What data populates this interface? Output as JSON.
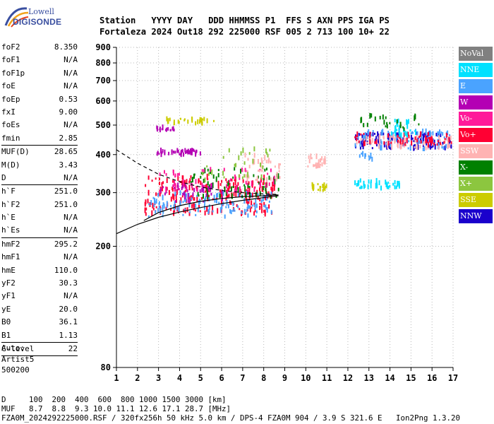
{
  "logo": {
    "line1": "Lowell",
    "line2": "DIGISONDE"
  },
  "header": {
    "labels": "Station   YYYY DAY   DDD HHMMSS P1  FFS S AXN PPS IGA PS",
    "values": "Fortaleza 2024 Out18 292 225000 RSF 005 2 713 100 10+ 22"
  },
  "params": {
    "group1": [
      {
        "name": "foF2",
        "value": "8.350"
      },
      {
        "name": "foF1",
        "value": "N/A"
      },
      {
        "name": "foF1p",
        "value": "N/A"
      },
      {
        "name": "foE",
        "value": "N/A"
      },
      {
        "name": "foEp",
        "value": "0.53"
      },
      {
        "name": "fxI",
        "value": "9.00"
      },
      {
        "name": "foEs",
        "value": "N/A"
      },
      {
        "name": "fmin",
        "value": "2.85"
      }
    ],
    "group2": [
      {
        "name": "MUF(D)",
        "value": "28.65"
      },
      {
        "name": "M(D)",
        "value": "3.43"
      },
      {
        "name": "D",
        "value": "N/A"
      }
    ],
    "group3": [
      {
        "name": "h`F",
        "value": "251.0"
      },
      {
        "name": "h`F2",
        "value": "251.0"
      },
      {
        "name": "h`E",
        "value": "N/A"
      },
      {
        "name": "h`Es",
        "value": "N/A"
      }
    ],
    "group4": [
      {
        "name": "hmF2",
        "value": "295.2"
      },
      {
        "name": "hmF1",
        "value": "N/A"
      },
      {
        "name": "hmE",
        "value": "110.0"
      },
      {
        "name": "yF2",
        "value": "30.3"
      },
      {
        "name": "yF1",
        "value": "N/A"
      },
      {
        "name": "yE",
        "value": "20.0"
      },
      {
        "name": "B0",
        "value": "36.1"
      },
      {
        "name": "B1",
        "value": "1.13"
      }
    ],
    "group5": [
      {
        "name": "C-level",
        "value": "22"
      }
    ]
  },
  "auto": {
    "line1": "Auto:",
    "line2": "Artist5",
    "line3": "500200"
  },
  "legend": [
    {
      "label": "NoVal",
      "color": "#808080"
    },
    {
      "label": "NNE",
      "color": "#00e1ff"
    },
    {
      "label": "E",
      "color": "#4aa3ff"
    },
    {
      "label": "W",
      "color": "#b400b4"
    },
    {
      "label": "Vo-",
      "color": "#ff1a9a"
    },
    {
      "label": "Vo+",
      "color": "#ff0033"
    },
    {
      "label": "SSW",
      "color": "#ffb3b3"
    },
    {
      "label": "X-",
      "color": "#008000"
    },
    {
      "label": "X+",
      "color": "#8cc63f"
    },
    {
      "label": "SSE",
      "color": "#cccc00"
    },
    {
      "label": "NNW",
      "color": "#1a00cc"
    }
  ],
  "footer": {
    "line1": "D     100  200  400  600  800 1000 1500 3000 [km]",
    "line2": "MUF   8.7  8.8  9.3 10.0 11.1 12.6 17.1 28.7 [MHz]",
    "line3": "FZA0M_2024292225000.RSF / 320fx256h 50 kHz 5.0 km / DPS-4 FZA0M 904 / 3.9 S 321.6 E   Ion2Png 1.3.20"
  },
  "chart_data": {
    "type": "scatter",
    "title": "",
    "xlabel": "",
    "ylabel": "",
    "x_ticks": [
      "1",
      "2",
      "3",
      "4",
      "5",
      "6",
      "7",
      "8",
      "9",
      "10",
      "11",
      "12",
      "13",
      "14",
      "15",
      "16",
      "17"
    ],
    "y_ticks": [
      "80",
      "200",
      "300",
      "400",
      "500",
      "600",
      "700",
      "800",
      "900"
    ],
    "xlim": [
      1,
      17
    ],
    "ylim": [
      80,
      900
    ],
    "y_scale": "log",
    "grid": "dotted",
    "clusters": [
      {
        "series": "Vo+",
        "x0": 2.3,
        "x1": 8.5,
        "y0": 255,
        "y1": 340,
        "n": 260
      },
      {
        "series": "E",
        "x0": 2.5,
        "x1": 8.5,
        "y0": 250,
        "y1": 300,
        "n": 120
      },
      {
        "series": "X-",
        "x0": 4.5,
        "x1": 8.8,
        "y0": 290,
        "y1": 360,
        "n": 70
      },
      {
        "series": "W",
        "x0": 3.0,
        "x1": 6.0,
        "y0": 280,
        "y1": 320,
        "n": 40
      },
      {
        "series": "Vo-",
        "x0": 3.0,
        "x1": 8.5,
        "y0": 300,
        "y1": 360,
        "n": 60
      },
      {
        "series": "SSW",
        "x0": 7.0,
        "x1": 8.8,
        "y0": 330,
        "y1": 400,
        "n": 40
      },
      {
        "series": "X+",
        "x0": 5.0,
        "x1": 8.5,
        "y0": 320,
        "y1": 420,
        "n": 30
      },
      {
        "series": "W",
        "x0": 2.9,
        "x1": 5.0,
        "y0": 400,
        "y1": 415,
        "n": 45
      },
      {
        "series": "W",
        "x0": 2.8,
        "x1": 3.8,
        "y0": 480,
        "y1": 495,
        "n": 15
      },
      {
        "series": "SSE",
        "x0": 3.3,
        "x1": 5.6,
        "y0": 505,
        "y1": 525,
        "n": 25
      },
      {
        "series": "NNW",
        "x0": 12.3,
        "x1": 16.9,
        "y0": 420,
        "y1": 470,
        "n": 120
      },
      {
        "series": "E",
        "x0": 12.3,
        "x1": 16.9,
        "y0": 415,
        "y1": 480,
        "n": 80
      },
      {
        "series": "SSW",
        "x0": 12.3,
        "x1": 16.9,
        "y0": 420,
        "y1": 460,
        "n": 70
      },
      {
        "series": "Vo+",
        "x0": 12.3,
        "x1": 16.9,
        "y0": 430,
        "y1": 470,
        "n": 60
      },
      {
        "series": "NNE",
        "x0": 14.0,
        "x1": 15.3,
        "y0": 460,
        "y1": 520,
        "n": 30
      },
      {
        "series": "X-",
        "x0": 12.5,
        "x1": 15.5,
        "y0": 480,
        "y1": 540,
        "n": 25
      },
      {
        "series": "NNE",
        "x0": 12.3,
        "x1": 14.5,
        "y0": 310,
        "y1": 330,
        "n": 40
      },
      {
        "series": "SSE",
        "x0": 10.2,
        "x1": 11.0,
        "y0": 305,
        "y1": 320,
        "n": 20
      },
      {
        "series": "SSW",
        "x0": 10.0,
        "x1": 10.9,
        "y0": 360,
        "y1": 395,
        "n": 25
      },
      {
        "series": "E",
        "x0": 12.5,
        "x1": 13.2,
        "y0": 385,
        "y1": 405,
        "n": 10
      }
    ],
    "curves": [
      {
        "style": "solid",
        "points": [
          [
            1,
            220
          ],
          [
            2,
            236
          ],
          [
            3,
            249
          ],
          [
            4,
            259
          ],
          [
            5,
            268
          ],
          [
            6,
            276
          ],
          [
            7,
            283
          ],
          [
            8,
            289
          ],
          [
            8.7,
            293
          ]
        ]
      },
      {
        "style": "solid",
        "points": [
          [
            2.3,
            243
          ],
          [
            3,
            258
          ],
          [
            4,
            272
          ],
          [
            5,
            281
          ],
          [
            6,
            287
          ],
          [
            7,
            291
          ],
          [
            8,
            293
          ],
          [
            8.7,
            295
          ]
        ]
      },
      {
        "style": "dashed",
        "points": [
          [
            1,
            415
          ],
          [
            2,
            375
          ],
          [
            3,
            345
          ],
          [
            4,
            326
          ],
          [
            5,
            313
          ],
          [
            6,
            305
          ],
          [
            7,
            300
          ],
          [
            8,
            297
          ],
          [
            8.7,
            296
          ]
        ]
      }
    ]
  }
}
